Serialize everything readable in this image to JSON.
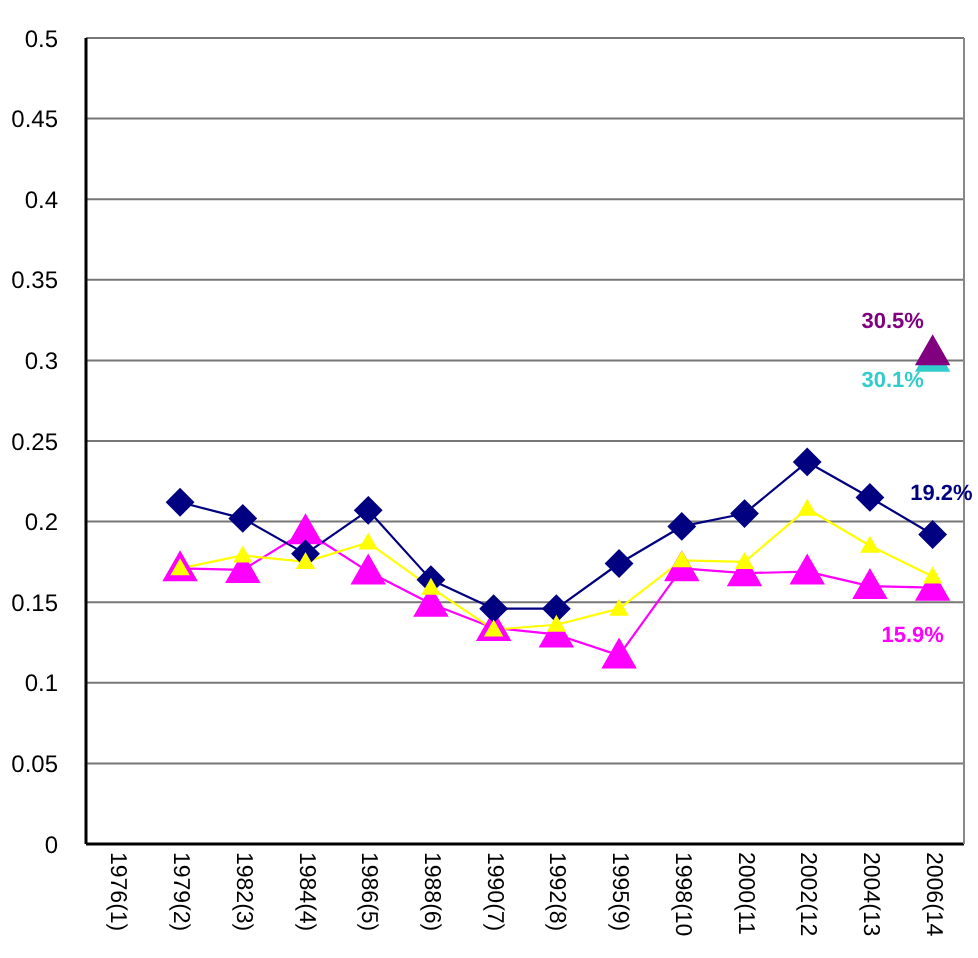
{
  "chart_data": {
    "type": "line",
    "categories": [
      "1976(1)",
      "1979(2)",
      "1982(3)",
      "1984(4)",
      "1986(5)",
      "1988(6)",
      "1990(7)",
      "1992(8)",
      "1995(9)",
      "1998(10",
      "2000(11",
      "2002(12",
      "2004(13",
      "2006(14"
    ],
    "ylim": [
      0,
      0.5
    ],
    "yticks": [
      0,
      0.05,
      0.1,
      0.15,
      0.2,
      0.25,
      0.3,
      0.35,
      0.4,
      0.45,
      0.5
    ],
    "grid": "y",
    "line_style": "solid",
    "series": [
      {
        "color": "#ff00ff",
        "marker": "triangle",
        "values": [
          null,
          0.171,
          0.17,
          0.194,
          0.169,
          0.149,
          0.134,
          0.13,
          0.117,
          0.171,
          0.168,
          0.169,
          0.16,
          0.159
        ],
        "value_labels": [
          null,
          null,
          null,
          null,
          null,
          null,
          null,
          null,
          null,
          null,
          null,
          null,
          null,
          "15.9%"
        ]
      },
      {
        "color": "#000080",
        "marker": "diamond",
        "values": [
          null,
          0.212,
          0.202,
          0.18,
          0.207,
          0.164,
          0.146,
          0.146,
          0.174,
          0.197,
          0.205,
          0.237,
          0.215,
          0.192
        ],
        "value_labels": [
          null,
          null,
          null,
          null,
          null,
          null,
          null,
          null,
          null,
          null,
          null,
          null,
          null,
          "19.2%"
        ]
      },
      {
        "color": "#ffff00",
        "marker": "triangle",
        "values": [
          null,
          0.171,
          0.179,
          0.175,
          0.187,
          0.159,
          0.133,
          0.136,
          0.146,
          0.176,
          0.175,
          0.208,
          0.185,
          0.166
        ]
      },
      {
        "color": "#33cccc",
        "marker": "triangle",
        "values": [
          null,
          null,
          null,
          null,
          null,
          null,
          null,
          null,
          null,
          null,
          null,
          null,
          null,
          0.301
        ],
        "value_labels": [
          null,
          null,
          null,
          null,
          null,
          null,
          null,
          null,
          null,
          null,
          null,
          null,
          null,
          "30.1%"
        ]
      },
      {
        "color": "#800080",
        "marker": "triangle",
        "values": [
          null,
          null,
          null,
          null,
          null,
          null,
          null,
          null,
          null,
          null,
          null,
          null,
          null,
          0.305
        ],
        "value_labels": [
          null,
          null,
          null,
          null,
          null,
          null,
          null,
          null,
          null,
          null,
          null,
          null,
          null,
          "30.5%"
        ]
      }
    ]
  }
}
